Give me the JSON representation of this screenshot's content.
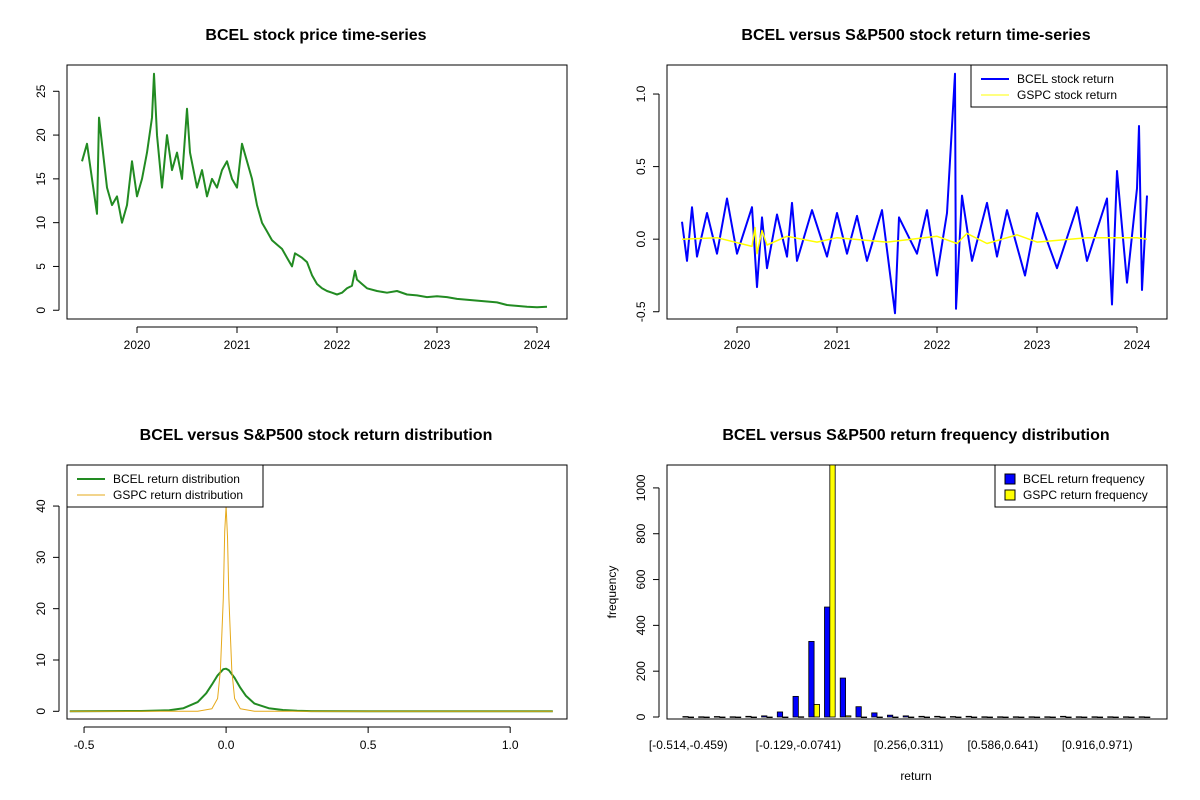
{
  "chart_data": [
    {
      "type": "line",
      "title": "BCEL stock price time-series",
      "xlabel": "",
      "ylabel": "",
      "x_ticks": [
        "2020",
        "2021",
        "2022",
        "2023",
        "2024"
      ],
      "x_tick_values": [
        2020,
        2021,
        2022,
        2023,
        2024
      ],
      "xlim": [
        2019.3,
        2024.3
      ],
      "ylim": [
        -1,
        28
      ],
      "y_ticks": [
        0,
        5,
        10,
        15,
        20,
        25
      ],
      "colors": {
        "line": "#228B22"
      },
      "series": [
        {
          "name": "BCEL price",
          "x": [
            2019.45,
            2019.5,
            2019.55,
            2019.6,
            2019.62,
            2019.7,
            2019.75,
            2019.8,
            2019.85,
            2019.9,
            2019.95,
            2020.0,
            2020.05,
            2020.1,
            2020.15,
            2020.17,
            2020.2,
            2020.25,
            2020.3,
            2020.35,
            2020.4,
            2020.45,
            2020.5,
            2020.53,
            2020.6,
            2020.65,
            2020.7,
            2020.75,
            2020.8,
            2020.85,
            2020.9,
            2020.95,
            2021.0,
            2021.05,
            2021.1,
            2021.15,
            2021.2,
            2021.25,
            2021.3,
            2021.35,
            2021.4,
            2021.45,
            2021.5,
            2021.55,
            2021.58,
            2021.65,
            2021.7,
            2021.75,
            2021.8,
            2021.85,
            2021.9,
            2021.95,
            2022.0,
            2022.05,
            2022.1,
            2022.15,
            2022.18,
            2022.2,
            2022.25,
            2022.3,
            2022.4,
            2022.5,
            2022.6,
            2022.7,
            2022.8,
            2022.9,
            2023.0,
            2023.1,
            2023.2,
            2023.3,
            2023.4,
            2023.5,
            2023.6,
            2023.7,
            2023.8,
            2023.9,
            2024.0,
            2024.1
          ],
          "values": [
            17,
            19,
            15,
            11,
            22,
            14,
            12,
            13,
            10,
            12,
            17,
            13,
            15,
            18,
            22,
            27,
            20,
            14,
            20,
            16,
            18,
            15,
            23,
            18,
            14,
            16,
            13,
            15,
            14,
            16,
            17,
            15,
            14,
            19,
            17,
            15,
            12,
            10,
            9,
            8,
            7.5,
            7,
            6,
            5,
            6.5,
            6,
            5.5,
            4,
            3,
            2.5,
            2.2,
            2.0,
            1.8,
            2,
            2.5,
            2.8,
            4.5,
            3.5,
            3,
            2.5,
            2.2,
            2.0,
            2.2,
            1.8,
            1.7,
            1.5,
            1.6,
            1.5,
            1.3,
            1.2,
            1.1,
            1.0,
            0.9,
            0.6,
            0.5,
            0.4,
            0.35,
            0.4
          ]
        }
      ]
    },
    {
      "type": "line",
      "title": "BCEL versus S&P500 stock return time-series",
      "xlabel": "",
      "ylabel": "",
      "x_ticks": [
        "2020",
        "2021",
        "2022",
        "2023",
        "2024"
      ],
      "x_tick_values": [
        2020,
        2021,
        2022,
        2023,
        2024
      ],
      "xlim": [
        2019.3,
        2024.3
      ],
      "ylim": [
        -0.55,
        1.2
      ],
      "y_ticks": [
        "-0.5",
        "0.0",
        "0.5",
        "1.0"
      ],
      "y_tick_values": [
        -0.5,
        0.0,
        0.5,
        1.0
      ],
      "legend": {
        "position": "top-right",
        "entries": [
          "BCEL stock return",
          "GSPC stock return"
        ]
      },
      "colors": {
        "bcel": "#0000FF",
        "gspc": "#FFFF00"
      },
      "series": [
        {
          "name": "BCEL stock return",
          "x": [
            2019.45,
            2019.5,
            2019.55,
            2019.6,
            2019.7,
            2019.8,
            2019.9,
            2020.0,
            2020.15,
            2020.2,
            2020.25,
            2020.3,
            2020.4,
            2020.5,
            2020.55,
            2020.6,
            2020.75,
            2020.9,
            2021.0,
            2021.1,
            2021.2,
            2021.3,
            2021.45,
            2021.58,
            2021.62,
            2021.8,
            2021.9,
            2022.0,
            2022.1,
            2022.18,
            2022.19,
            2022.25,
            2022.35,
            2022.5,
            2022.6,
            2022.7,
            2022.88,
            2023.0,
            2023.2,
            2023.4,
            2023.5,
            2023.7,
            2023.75,
            2023.8,
            2023.9,
            2024.0,
            2024.02,
            2024.05,
            2024.1
          ],
          "values": [
            0.12,
            -0.15,
            0.22,
            -0.12,
            0.18,
            -0.1,
            0.28,
            -0.1,
            0.22,
            -0.33,
            0.15,
            -0.2,
            0.17,
            -0.12,
            0.25,
            -0.15,
            0.2,
            -0.12,
            0.18,
            -0.1,
            0.16,
            -0.15,
            0.2,
            -0.51,
            0.15,
            -0.1,
            0.2,
            -0.25,
            0.18,
            1.14,
            -0.48,
            0.3,
            -0.15,
            0.25,
            -0.12,
            0.2,
            -0.25,
            0.18,
            -0.2,
            0.22,
            -0.15,
            0.28,
            -0.45,
            0.47,
            -0.3,
            0.35,
            0.78,
            -0.35,
            0.3
          ]
        },
        {
          "name": "GSPC stock return",
          "x": [
            2019.45,
            2019.8,
            2020.15,
            2020.18,
            2020.2,
            2020.25,
            2020.3,
            2020.5,
            2020.8,
            2021.0,
            2021.5,
            2022.0,
            2022.2,
            2022.3,
            2022.5,
            2022.8,
            2023.0,
            2023.5,
            2024.0,
            2024.1
          ],
          "values": [
            0.0,
            0.01,
            -0.05,
            0.08,
            -0.1,
            0.06,
            -0.04,
            0.02,
            -0.02,
            0.01,
            -0.02,
            0.02,
            -0.03,
            0.04,
            -0.03,
            0.03,
            -0.02,
            0.01,
            0.01,
            0.0
          ]
        }
      ]
    },
    {
      "type": "line",
      "title": "BCEL versus S&P500 stock return distribution",
      "xlabel": "",
      "ylabel": "",
      "x_ticks": [
        "-0.5",
        "0.0",
        "0.5",
        "1.0"
      ],
      "x_tick_values": [
        -0.5,
        0.0,
        0.5,
        1.0
      ],
      "xlim": [
        -0.56,
        1.2
      ],
      "ylim": [
        -1.5,
        48
      ],
      "y_ticks": [
        0,
        10,
        20,
        30,
        40
      ],
      "legend": {
        "position": "top-left",
        "entries": [
          "BCEL return distribution",
          "GSPC return distribution"
        ]
      },
      "colors": {
        "bcel": "#228B22",
        "gspc": "#E6A91A"
      },
      "series": [
        {
          "name": "BCEL return distribution",
          "x": [
            -0.55,
            -0.3,
            -0.2,
            -0.15,
            -0.1,
            -0.07,
            -0.05,
            -0.03,
            -0.01,
            0.0,
            0.01,
            0.03,
            0.05,
            0.07,
            0.1,
            0.15,
            0.2,
            0.25,
            0.3,
            0.5,
            1.0,
            1.15
          ],
          "values": [
            0,
            0.05,
            0.2,
            0.6,
            1.8,
            3.5,
            5.2,
            7.0,
            8.2,
            8.3,
            8.0,
            6.5,
            4.6,
            3.0,
            1.5,
            0.6,
            0.25,
            0.1,
            0.04,
            0.01,
            0.01,
            0
          ]
        },
        {
          "name": "GSPC return distribution",
          "x": [
            -0.55,
            -0.1,
            -0.05,
            -0.03,
            -0.02,
            -0.01,
            -0.005,
            0.0,
            0.005,
            0.01,
            0.02,
            0.03,
            0.05,
            0.1,
            1.15
          ],
          "values": [
            0,
            0,
            0.5,
            2.5,
            8,
            22,
            35,
            40,
            34,
            22,
            8,
            2.5,
            0.5,
            0,
            0
          ]
        }
      ]
    },
    {
      "type": "bar",
      "title": "BCEL versus S&P500 return frequency distribution",
      "xlabel": "return",
      "ylabel": "frequency",
      "ylim": [
        0,
        1100
      ],
      "y_ticks": [
        0,
        200,
        400,
        600,
        800,
        1000
      ],
      "x_tick_labels": [
        "[-0.514,-0.459)",
        "[-0.129,-0.0741)",
        "[0.256,0.311)",
        "[0.586,0.641)",
        "[0.916,0.971)"
      ],
      "x_tick_bins": [
        0,
        7,
        14,
        20,
        26
      ],
      "legend": {
        "position": "top-right",
        "entries": [
          "BCEL return frequency",
          "GSPC return frequency"
        ]
      },
      "colors": {
        "bcel": "#0000FF",
        "gspc": "#FFFF00"
      },
      "series": [
        {
          "name": "BCEL return frequency",
          "values": [
            2,
            1,
            2,
            1,
            3,
            5,
            22,
            90,
            330,
            480,
            170,
            45,
            18,
            8,
            5,
            3,
            3,
            2,
            3,
            1,
            1,
            1,
            1,
            1,
            3,
            1,
            1,
            1,
            1,
            1
          ]
        },
        {
          "name": "GSPC return frequency",
          "values": [
            0,
            0,
            0,
            0,
            0,
            0,
            0,
            1,
            55,
            1100,
            5,
            0,
            0,
            0,
            0,
            0,
            0,
            0,
            0,
            0,
            0,
            0,
            0,
            0,
            0,
            0,
            0,
            0,
            0,
            0
          ]
        }
      ]
    }
  ]
}
